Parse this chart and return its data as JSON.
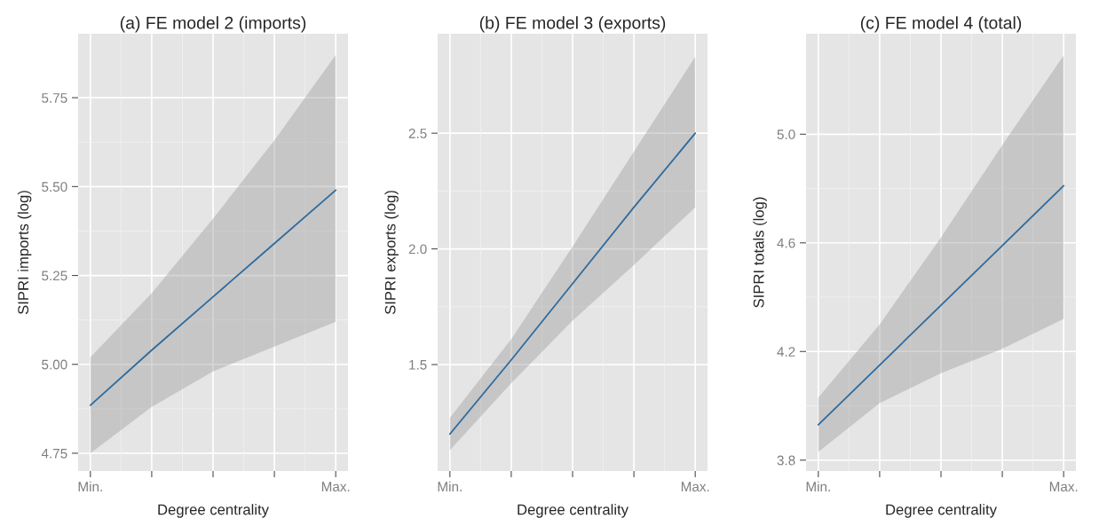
{
  "chart_data": [
    {
      "type": "line",
      "title": "(a) FE model 2 (imports)",
      "xlabel": "Degree centrality",
      "ylabel": "SIPRI imports (log)",
      "categories": [
        "Min.",
        null,
        null,
        null,
        "Max."
      ],
      "ylim": [
        4.7,
        5.93
      ],
      "yticks": [
        {
          "value": 4.75,
          "label": "4.75"
        },
        {
          "value": 5.0,
          "label": "5.00"
        },
        {
          "value": 5.25,
          "label": "5.25"
        },
        {
          "value": 5.5,
          "label": "5.50"
        },
        {
          "value": 5.75,
          "label": "5.75"
        }
      ],
      "grid": true,
      "series": [
        {
          "color": "#2e6b9e",
          "values": [
            4.885,
            5.04,
            5.19,
            5.34,
            5.49
          ],
          "lower": [
            4.75,
            4.88,
            4.98,
            5.05,
            5.12
          ],
          "upper": [
            5.02,
            5.2,
            5.41,
            5.63,
            5.87
          ]
        }
      ]
    },
    {
      "type": "line",
      "title": "(b) FE model 3 (exports)",
      "xlabel": "Degree centrality",
      "ylabel": "SIPRI exports (log)",
      "categories": [
        "Min.",
        null,
        null,
        null,
        "Max."
      ],
      "ylim": [
        1.04,
        2.93
      ],
      "yticks": [
        1.5,
        {
          "value": 2.0,
          "label": "2.0"
        },
        2.5
      ],
      "grid": true,
      "series": [
        {
          "color": "#2e6b9e",
          "values": [
            1.2,
            1.52,
            1.85,
            2.18,
            2.5
          ],
          "lower": [
            1.13,
            1.42,
            1.69,
            1.93,
            2.18
          ],
          "upper": [
            1.27,
            1.61,
            2.01,
            2.42,
            2.83
          ]
        }
      ]
    },
    {
      "type": "line",
      "title": "(c) FE model 4 (total)",
      "xlabel": "Degree centrality",
      "ylabel": "SIPRI totals (log)",
      "categories": [
        "Min.",
        null,
        null,
        null,
        "Max."
      ],
      "ylim": [
        3.76,
        5.37
      ],
      "yticks": [
        3.8,
        4.2,
        4.6,
        {
          "value": 5.0,
          "label": "5.0"
        }
      ],
      "grid": true,
      "series": [
        {
          "color": "#2e6b9e",
          "values": [
            3.93,
            4.15,
            4.37,
            4.59,
            4.81
          ],
          "lower": [
            3.83,
            4.01,
            4.12,
            4.21,
            4.32
          ],
          "upper": [
            4.03,
            4.3,
            4.62,
            4.96,
            5.29
          ]
        }
      ]
    }
  ]
}
